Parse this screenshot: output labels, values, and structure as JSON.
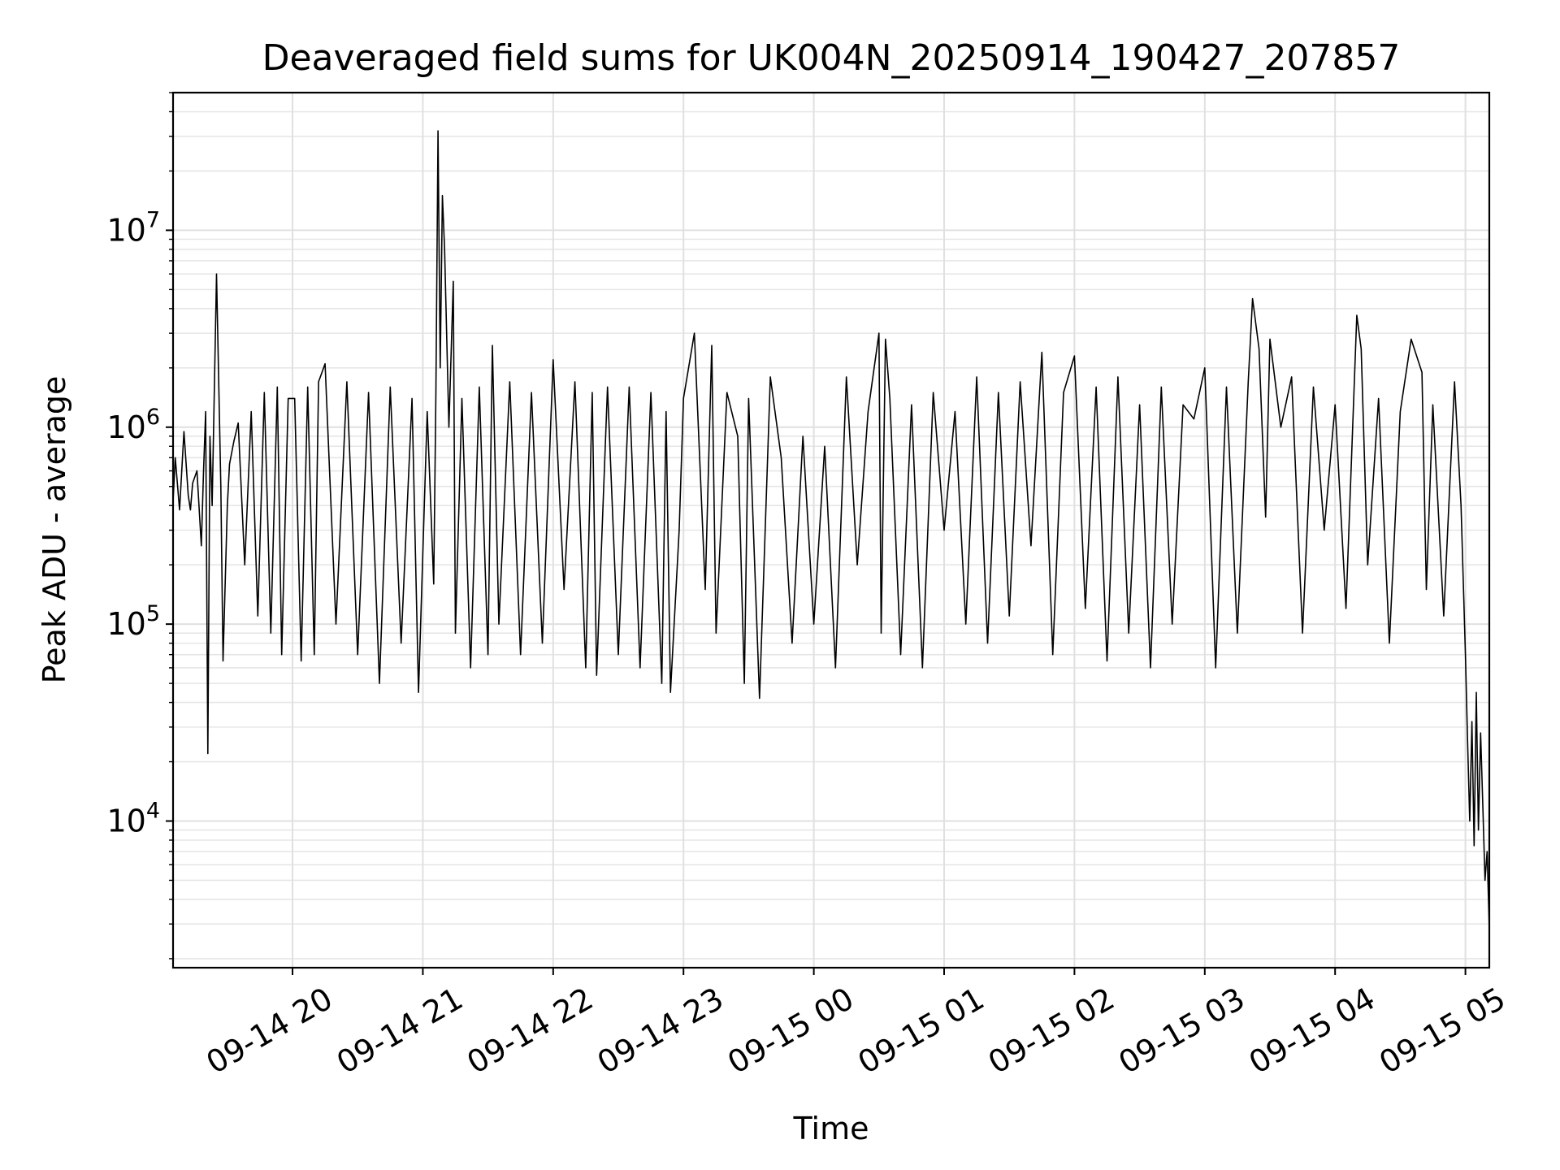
{
  "chart_data": {
    "type": "line",
    "title": "Deaveraged field sums for UK004N_20250914_190427_207857",
    "xlabel": "Time",
    "ylabel": "Peak ADU - average",
    "yscale": "log",
    "ylim": [
      1800,
      50000000
    ],
    "xlim": [
      "2025-09-14 19:05",
      "2025-09-15 05:11"
    ],
    "grid": true,
    "line_color": "#000000",
    "x_ticks": [
      {
        "label": "09-14 20",
        "value": "2025-09-14 20:00"
      },
      {
        "label": "09-14 21",
        "value": "2025-09-14 21:00"
      },
      {
        "label": "09-14 22",
        "value": "2025-09-14 22:00"
      },
      {
        "label": "09-14 23",
        "value": "2025-09-14 23:00"
      },
      {
        "label": "09-15 00",
        "value": "2025-09-15 00:00"
      },
      {
        "label": "09-15 01",
        "value": "2025-09-15 01:00"
      },
      {
        "label": "09-15 02",
        "value": "2025-09-15 02:00"
      },
      {
        "label": "09-15 03",
        "value": "2025-09-15 03:00"
      },
      {
        "label": "09-15 04",
        "value": "2025-09-15 04:00"
      },
      {
        "label": "09-15 05",
        "value": "2025-09-15 05:00"
      }
    ],
    "y_ticks": [
      {
        "base": "10",
        "exp": "4",
        "value": 10000
      },
      {
        "base": "10",
        "exp": "5",
        "value": 100000
      },
      {
        "base": "10",
        "exp": "6",
        "value": 1000000
      },
      {
        "base": "10",
        "exp": "7",
        "value": 10000000
      }
    ],
    "series": [
      {
        "x": [
          "2025-09-14 19:05",
          "2025-09-14 19:06",
          "2025-09-14 19:08",
          "2025-09-14 19:09",
          "2025-09-14 19:10",
          "2025-09-14 19:12",
          "2025-09-14 19:13",
          "2025-09-14 19:14",
          "2025-09-14 19:16",
          "2025-09-14 19:18",
          "2025-09-14 19:19",
          "2025-09-14 19:20",
          "2025-09-14 19:21",
          "2025-09-14 19:22",
          "2025-09-14 19:23",
          "2025-09-14 19:25",
          "2025-09-14 19:27",
          "2025-09-14 19:28",
          "2025-09-14 19:30",
          "2025-09-14 19:31",
          "2025-09-14 19:33",
          "2025-09-14 19:35",
          "2025-09-14 19:38",
          "2025-09-14 19:41",
          "2025-09-14 19:44",
          "2025-09-14 19:47",
          "2025-09-14 19:50",
          "2025-09-14 19:53",
          "2025-09-14 19:55",
          "2025-09-14 19:58",
          "2025-09-14 20:01",
          "2025-09-14 20:04",
          "2025-09-14 20:07",
          "2025-09-14 20:10",
          "2025-09-14 20:12",
          "2025-09-14 20:15",
          "2025-09-14 20:20",
          "2025-09-14 20:25",
          "2025-09-14 20:30",
          "2025-09-14 20:35",
          "2025-09-14 20:40",
          "2025-09-14 20:45",
          "2025-09-14 20:50",
          "2025-09-14 20:55",
          "2025-09-14 20:58",
          "2025-09-14 21:02",
          "2025-09-14 21:05",
          "2025-09-14 21:06",
          "2025-09-14 21:07",
          "2025-09-14 21:08",
          "2025-09-14 21:09",
          "2025-09-14 21:10",
          "2025-09-14 21:12",
          "2025-09-14 21:14",
          "2025-09-14 21:15",
          "2025-09-14 21:18",
          "2025-09-14 21:22",
          "2025-09-14 21:26",
          "2025-09-14 21:30",
          "2025-09-14 21:32",
          "2025-09-14 21:35",
          "2025-09-14 21:40",
          "2025-09-14 21:45",
          "2025-09-14 21:50",
          "2025-09-14 21:55",
          "2025-09-14 22:00",
          "2025-09-14 22:05",
          "2025-09-14 22:10",
          "2025-09-14 22:15",
          "2025-09-14 22:18",
          "2025-09-14 22:20",
          "2025-09-14 22:25",
          "2025-09-14 22:30",
          "2025-09-14 22:35",
          "2025-09-14 22:40",
          "2025-09-14 22:45",
          "2025-09-14 22:50",
          "2025-09-14 22:52",
          "2025-09-14 22:54",
          "2025-09-14 22:58",
          "2025-09-14 23:00",
          "2025-09-14 23:05",
          "2025-09-14 23:10",
          "2025-09-14 23:13",
          "2025-09-14 23:15",
          "2025-09-14 23:20",
          "2025-09-14 23:25",
          "2025-09-14 23:28",
          "2025-09-14 23:30",
          "2025-09-14 23:35",
          "2025-09-14 23:40",
          "2025-09-14 23:45",
          "2025-09-14 23:50",
          "2025-09-14 23:55",
          "2025-09-15 00:00",
          "2025-09-15 00:05",
          "2025-09-15 00:10",
          "2025-09-15 00:15",
          "2025-09-15 00:20",
          "2025-09-15 00:25",
          "2025-09-15 00:30",
          "2025-09-15 00:31",
          "2025-09-15 00:33",
          "2025-09-15 00:35",
          "2025-09-15 00:40",
          "2025-09-15 00:45",
          "2025-09-15 00:50",
          "2025-09-15 00:55",
          "2025-09-15 01:00",
          "2025-09-15 01:05",
          "2025-09-15 01:10",
          "2025-09-15 01:15",
          "2025-09-15 01:20",
          "2025-09-15 01:25",
          "2025-09-15 01:30",
          "2025-09-15 01:35",
          "2025-09-15 01:40",
          "2025-09-15 01:45",
          "2025-09-15 01:50",
          "2025-09-15 01:55",
          "2025-09-15 02:00",
          "2025-09-15 02:05",
          "2025-09-15 02:10",
          "2025-09-15 02:15",
          "2025-09-15 02:20",
          "2025-09-15 02:25",
          "2025-09-15 02:30",
          "2025-09-15 02:35",
          "2025-09-15 02:40",
          "2025-09-15 02:45",
          "2025-09-15 02:50",
          "2025-09-15 02:55",
          "2025-09-15 03:00",
          "2025-09-15 03:05",
          "2025-09-15 03:10",
          "2025-09-15 03:15",
          "2025-09-15 03:20",
          "2025-09-15 03:22",
          "2025-09-15 03:25",
          "2025-09-15 03:28",
          "2025-09-15 03:30",
          "2025-09-15 03:35",
          "2025-09-15 03:40",
          "2025-09-15 03:45",
          "2025-09-15 03:50",
          "2025-09-15 03:55",
          "2025-09-15 04:00",
          "2025-09-15 04:05",
          "2025-09-15 04:10",
          "2025-09-15 04:12",
          "2025-09-15 04:15",
          "2025-09-15 04:20",
          "2025-09-15 04:25",
          "2025-09-15 04:30",
          "2025-09-15 04:35",
          "2025-09-15 04:40",
          "2025-09-15 04:42",
          "2025-09-15 04:45",
          "2025-09-15 04:50",
          "2025-09-15 04:55",
          "2025-09-15 04:58",
          "2025-09-15 05:00",
          "2025-09-15 05:01",
          "2025-09-15 05:02",
          "2025-09-15 05:03",
          "2025-09-15 05:04",
          "2025-09-15 05:05",
          "2025-09-15 05:06",
          "2025-09-15 05:07",
          "2025-09-15 05:08",
          "2025-09-15 05:09",
          "2025-09-15 05:10",
          "2025-09-15 05:11"
        ],
        "y": [
          420000,
          700000,
          380000,
          600000,
          950000,
          450000,
          380000,
          520000,
          600000,
          250000,
          580000,
          1200000,
          22000,
          900000,
          400000,
          6000000,
          500000,
          65000,
          400000,
          650000,
          850000,
          1050000,
          200000,
          1200000,
          110000,
          1500000,
          90000,
          1600000,
          70000,
          1400000,
          1400000,
          65000,
          1600000,
          70000,
          1700000,
          2100000,
          100000,
          1700000,
          70000,
          1500000,
          50000,
          1600000,
          80000,
          1400000,
          45000,
          1200000,
          160000,
          1500000,
          32000000,
          2000000,
          15000000,
          8000000,
          1000000,
          5500000,
          90000,
          1400000,
          60000,
          1600000,
          70000,
          2600000,
          100000,
          1700000,
          70000,
          1500000,
          80000,
          2200000,
          150000,
          1700000,
          60000,
          1500000,
          55000,
          1600000,
          70000,
          1600000,
          60000,
          1500000,
          50000,
          1200000,
          45000,
          300000,
          1400000,
          3000000,
          150000,
          2600000,
          90000,
          1500000,
          900000,
          50000,
          1400000,
          42000,
          1800000,
          700000,
          80000,
          900000,
          100000,
          800000,
          60000,
          1800000,
          200000,
          1200000,
          3000000,
          90000,
          2800000,
          1400000,
          70000,
          1300000,
          60000,
          1500000,
          300000,
          1200000,
          100000,
          1800000,
          80000,
          1500000,
          110000,
          1700000,
          250000,
          2400000,
          70000,
          1500000,
          2300000,
          120000,
          1600000,
          65000,
          1800000,
          90000,
          1300000,
          60000,
          1600000,
          100000,
          1300000,
          1100000,
          2000000,
          60000,
          1600000,
          90000,
          1700000,
          4500000,
          2500000,
          350000,
          2800000,
          1000000,
          1800000,
          90000,
          1600000,
          300000,
          1300000,
          120000,
          3700000,
          2500000,
          200000,
          1400000,
          80000,
          1200000,
          2800000,
          1900000,
          150000,
          1300000,
          110000,
          1700000,
          400000,
          70000,
          25000,
          10000,
          32000,
          7500,
          45000,
          9000,
          28000,
          12000,
          5000,
          7000,
          2800
        ]
      }
    ]
  }
}
